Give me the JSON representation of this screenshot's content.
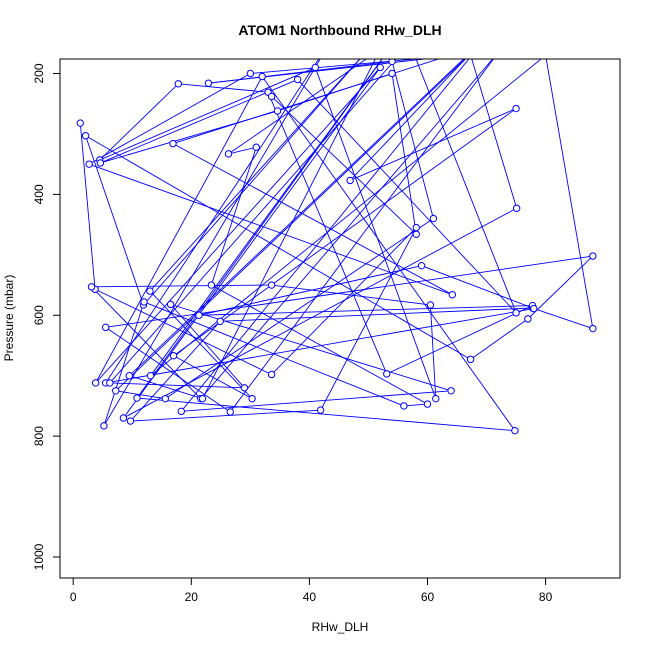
{
  "chart_data": {
    "type": "line",
    "title": "ATOM1 Northbound RHw_DLH",
    "xlabel": "RHw_DLH",
    "ylabel": "Pressure (mbar)",
    "xlim": [
      0,
      90
    ],
    "ylim": [
      1000,
      200
    ],
    "y_reversed": true,
    "grid": false,
    "legend": "none",
    "x_ticks": [
      0,
      20,
      40,
      60,
      80
    ],
    "y_ticks": [
      200,
      400,
      600,
      800,
      1000
    ],
    "series": [
      {
        "color": "#0000ff",
        "x": [
          1.2,
          3.7,
          33.6,
          58.1,
          41.9,
          9.7,
          24.9,
          77.8,
          59.0,
          21.3,
          77.8,
          53.1,
          33.0,
          17.8,
          4.5,
          41.0,
          61.4,
          60.5,
          33.6,
          3.1,
          21.6,
          72.0,
          26.6,
          5.5,
          88.0,
          77.0,
          67.3,
          2.1,
          11.9,
          50.0,
          13.0,
          30.3,
          17.0,
          75.0,
          46.9,
          67.0,
          7.2,
          15.6,
          61.0,
          54.0,
          22.9,
          65.0,
          30.0,
          2.7,
          64.2,
          16.9,
          67.0,
          75.1,
          8.5,
          52.0,
          3.8,
          32.0,
          74.8,
          10.8,
          55.0,
          13.1,
          80.0,
          88.0,
          78.0,
          5.5,
          44.0,
          5.2,
          12.0,
          56.0,
          60.0,
          23.4,
          31.0,
          26.3,
          52.0,
          21.9,
          9.5,
          70.0,
          18.3,
          64.0,
          16.5,
          29.0,
          6.2,
          57.0,
          75.0,
          38.0,
          4.6,
          34.6,
          54.0,
          58.1,
          33.6
        ],
        "y": [
          282,
          557,
          698,
          455,
          757,
          775,
          610,
          588,
          518,
          600,
          584,
          697,
          231,
          217,
          343,
          190,
          738,
          583,
          550,
          553,
          738,
          165,
          760,
          620,
          502,
          606,
          673,
          303,
          583,
          160,
          560,
          738,
          667,
          258,
          377,
          170,
          725,
          738,
          440,
          180,
          216,
          170,
          200,
          350,
          566,
          316,
          160,
          423,
          770,
          190,
          712,
          205,
          791,
          737,
          140,
          700,
          170,
          622,
          589,
          712,
          140,
          783,
          578,
          750,
          747,
          550,
          322,
          333,
          160,
          738,
          700,
          140,
          759,
          725,
          582,
          720,
          712,
          150,
          596,
          210,
          348,
          262,
          200,
          466,
          238
        ]
      }
    ]
  }
}
